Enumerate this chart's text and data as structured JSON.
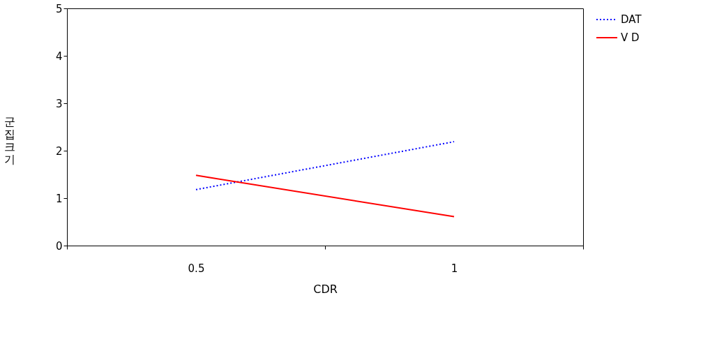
{
  "chart_data": {
    "type": "line",
    "xlabel": "CDR",
    "ylabel": "군집크기",
    "categories": [
      "0.5",
      "1"
    ],
    "series": [
      {
        "name": "DAT",
        "color": "#0000ff",
        "line_style": "dotted",
        "values": [
          1.18,
          2.19
        ]
      },
      {
        "name": "V D",
        "color": "#ff0000",
        "line_style": "solid",
        "values": [
          1.48,
          0.61
        ]
      }
    ],
    "ylim": [
      0,
      5
    ],
    "yticks": [
      0,
      1,
      2,
      3,
      4,
      5
    ],
    "grid": false,
    "legend": "right",
    "marker": "none"
  }
}
